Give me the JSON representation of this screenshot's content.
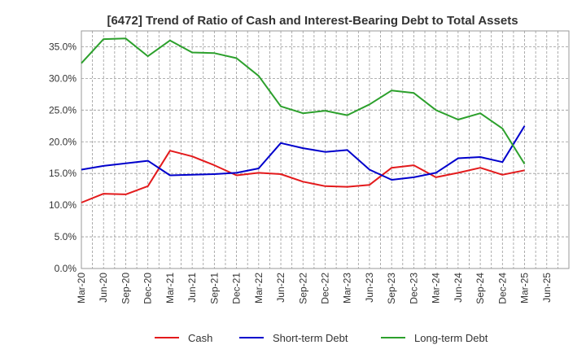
{
  "chart_data": {
    "type": "line",
    "title": "[6472]  Trend of Ratio of Cash and Interest-Bearing Debt to Total Assets",
    "xlabel": "",
    "ylabel": "",
    "x": [
      "Mar-20",
      "Jun-20",
      "Sep-20",
      "Dec-20",
      "Mar-21",
      "Jun-21",
      "Sep-21",
      "Dec-21",
      "Mar-22",
      "Jun-22",
      "Sep-22",
      "Dec-22",
      "Mar-23",
      "Jun-23",
      "Sep-23",
      "Dec-23",
      "Mar-24",
      "Jun-24",
      "Sep-24",
      "Dec-24",
      "Mar-25",
      "Jun-25"
    ],
    "ylim": [
      0,
      37.5
    ],
    "yticks": [
      0,
      5,
      10,
      15,
      20,
      25,
      30,
      35
    ],
    "ytick_labels": [
      "0.0%",
      "5.0%",
      "10.0%",
      "15.0%",
      "20.0%",
      "25.0%",
      "30.0%",
      "35.0%"
    ],
    "grid": true,
    "legend_position": "bottom",
    "series": [
      {
        "name": "Cash",
        "color": "#e31a1c",
        "values": [
          10.4,
          11.8,
          11.7,
          13.0,
          18.6,
          17.7,
          16.3,
          14.7,
          15.1,
          14.9,
          13.7,
          13.0,
          12.9,
          13.2,
          15.9,
          16.3,
          14.4,
          15.1,
          15.9,
          14.8,
          15.5,
          null
        ]
      },
      {
        "name": "Short-term Debt",
        "color": "#0000cc",
        "values": [
          15.6,
          16.2,
          16.6,
          17.0,
          14.7,
          14.8,
          14.9,
          15.1,
          15.8,
          19.8,
          19.0,
          18.4,
          18.7,
          15.6,
          14.0,
          14.4,
          15.1,
          17.4,
          17.6,
          16.8,
          22.5,
          null
        ]
      },
      {
        "name": "Long-term Debt",
        "color": "#2ca02c",
        "values": [
          32.4,
          36.2,
          36.3,
          33.5,
          36.0,
          34.1,
          34.0,
          33.2,
          30.4,
          25.6,
          24.5,
          24.9,
          24.2,
          25.9,
          28.1,
          27.7,
          25.0,
          23.5,
          24.5,
          22.1,
          16.5,
          null
        ]
      }
    ]
  }
}
